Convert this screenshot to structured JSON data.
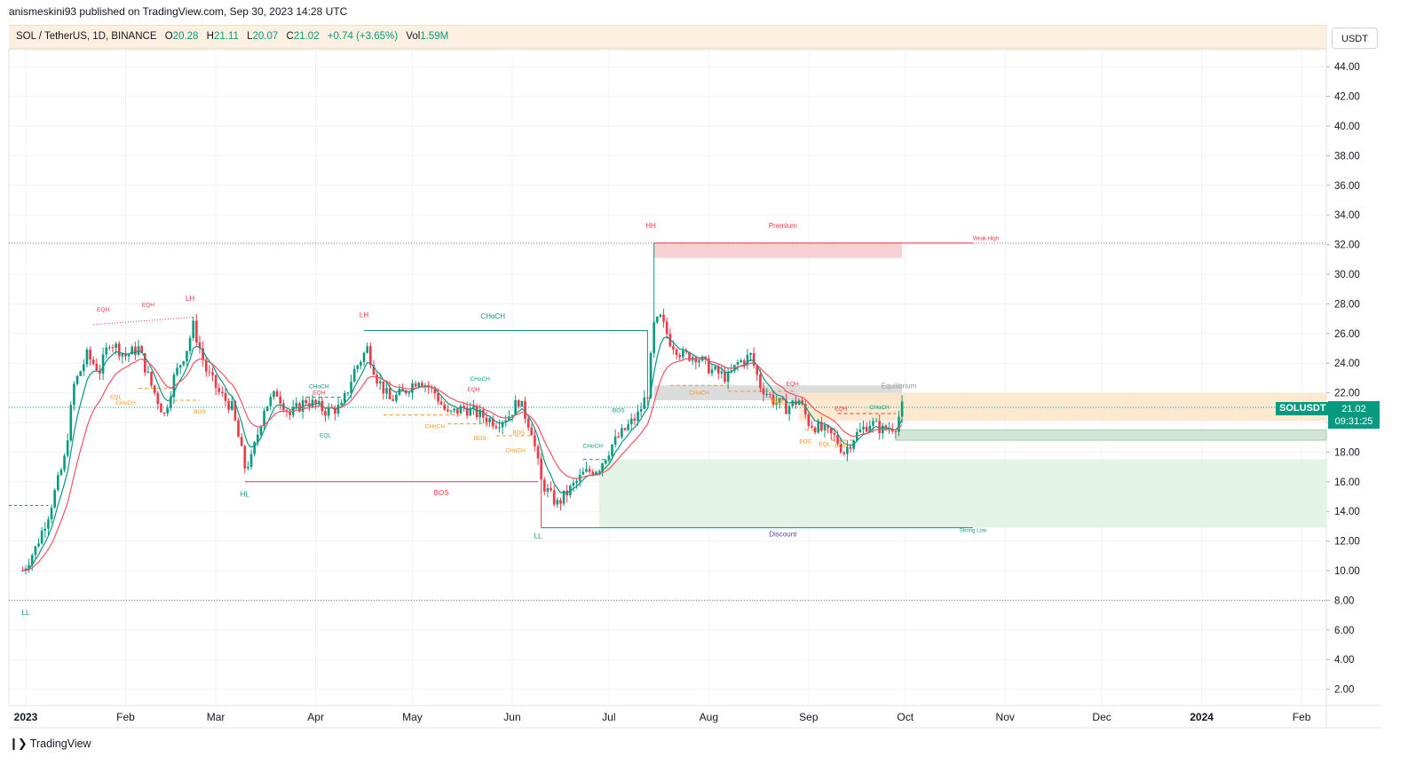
{
  "header": {
    "published": "anismeskini93 published on TradingView.com, Sep 30, 2023 14:28 UTC"
  },
  "legend": {
    "symbol": "SOL / TetherUS, 1D, BINANCE",
    "o_label": "O",
    "o": "20.28",
    "h_label": "H",
    "h": "21.11",
    "l_label": "L",
    "l": "20.07",
    "c_label": "C",
    "c": "21.02",
    "change": "+0.74 (+3.65%)",
    "vol_label": "Vol",
    "vol": "1.59M"
  },
  "currency": "USDT",
  "last_price": {
    "symbol": "SOLUSDT",
    "price": "21.02",
    "countdown": "09:31:25"
  },
  "footer": {
    "brand": "TradingView"
  },
  "colors": {
    "up": "#089981",
    "down": "#f23645",
    "ema_fast": "#089981",
    "ema_slow": "#f7525f",
    "premium_zone": "#f8d1d4",
    "discount_zone": "#e3f3e6",
    "equilibrium_zone": "#dcdcdc",
    "supply_zone": "#fde4c8",
    "purple_zone": "#c9c5d8",
    "bos": "#f7931a",
    "choch_green": "#089981"
  },
  "chart_data": {
    "type": "candlestick",
    "y_axis": {
      "min": 1,
      "max": 45.5,
      "ticks": [
        "44.00",
        "42.00",
        "40.00",
        "38.00",
        "36.00",
        "34.00",
        "32.00",
        "30.00",
        "28.00",
        "26.00",
        "24.00",
        "22.00",
        "20.00",
        "18.00",
        "16.00",
        "14.00",
        "12.00",
        "10.00",
        "8.00",
        "6.00",
        "4.00",
        "2.00"
      ]
    },
    "x_axis": {
      "ticks": [
        {
          "label": "2023",
          "date": "2023-01-01",
          "bold": true
        },
        {
          "label": "Feb",
          "date": "2023-02-01"
        },
        {
          "label": "Mar",
          "date": "2023-03-01"
        },
        {
          "label": "Apr",
          "date": "2023-04-01"
        },
        {
          "label": "May",
          "date": "2023-05-01"
        },
        {
          "label": "Jun",
          "date": "2023-06-01"
        },
        {
          "label": "Jul",
          "date": "2023-07-01"
        },
        {
          "label": "Aug",
          "date": "2023-08-01"
        },
        {
          "label": "Sep",
          "date": "2023-09-01"
        },
        {
          "label": "Oct",
          "date": "2023-10-01"
        },
        {
          "label": "Nov",
          "date": "2023-11-01"
        },
        {
          "label": "Dec",
          "date": "2023-12-01"
        },
        {
          "label": "2024",
          "date": "2024-01-01",
          "bold": true
        },
        {
          "label": "Feb",
          "date": "2024-02-01"
        }
      ]
    },
    "close_path": [
      [
        "2022-12-31",
        10.0
      ],
      [
        "2023-01-04",
        11.5
      ],
      [
        "2023-01-08",
        13.8
      ],
      [
        "2023-01-13",
        17.5
      ],
      [
        "2023-01-16",
        22.5
      ],
      [
        "2023-01-20",
        24.5
      ],
      [
        "2023-01-24",
        23.5
      ],
      [
        "2023-01-27",
        25.5
      ],
      [
        "2023-02-01",
        24.5
      ],
      [
        "2023-02-05",
        25.0
      ],
      [
        "2023-02-09",
        22.5
      ],
      [
        "2023-02-13",
        20.5
      ],
      [
        "2023-02-16",
        23.0
      ],
      [
        "2023-02-20",
        25.0
      ],
      [
        "2023-02-22",
        26.5
      ],
      [
        "2023-02-26",
        23.5
      ],
      [
        "2023-03-02",
        22.0
      ],
      [
        "2023-03-06",
        21.0
      ],
      [
        "2023-03-10",
        17.0
      ],
      [
        "2023-03-12",
        17.5
      ],
      [
        "2023-03-16",
        21.0
      ],
      [
        "2023-03-20",
        22.0
      ],
      [
        "2023-03-24",
        20.5
      ],
      [
        "2023-03-29",
        21.5
      ],
      [
        "2023-04-04",
        20.8
      ],
      [
        "2023-04-09",
        21.0
      ],
      [
        "2023-04-13",
        23.5
      ],
      [
        "2023-04-17",
        25.0
      ],
      [
        "2023-04-20",
        23.0
      ],
      [
        "2023-04-24",
        21.5
      ],
      [
        "2023-04-28",
        22.0
      ],
      [
        "2023-05-03",
        23.0
      ],
      [
        "2023-05-08",
        22.0
      ],
      [
        "2023-05-12",
        20.5
      ],
      [
        "2023-05-17",
        21.0
      ],
      [
        "2023-05-22",
        20.5
      ],
      [
        "2023-05-27",
        20.0
      ],
      [
        "2023-05-31",
        20.5
      ],
      [
        "2023-06-03",
        21.5
      ],
      [
        "2023-06-07",
        19.5
      ],
      [
        "2023-06-10",
        16.0
      ],
      [
        "2023-06-13",
        15.0
      ],
      [
        "2023-06-15",
        14.5
      ],
      [
        "2023-06-19",
        15.5
      ],
      [
        "2023-06-23",
        16.5
      ],
      [
        "2023-06-28",
        17.0
      ],
      [
        "2023-07-02",
        18.5
      ],
      [
        "2023-07-06",
        19.5
      ],
      [
        "2023-07-10",
        20.5
      ],
      [
        "2023-07-13",
        22.0
      ],
      [
        "2023-07-15",
        26.5
      ],
      [
        "2023-07-17",
        27.0
      ],
      [
        "2023-07-20",
        25.5
      ],
      [
        "2023-07-24",
        24.5
      ],
      [
        "2023-07-28",
        24.5
      ],
      [
        "2023-08-02",
        23.5
      ],
      [
        "2023-08-07",
        23.0
      ],
      [
        "2023-08-10",
        24.0
      ],
      [
        "2023-08-14",
        24.5
      ],
      [
        "2023-08-17",
        22.5
      ],
      [
        "2023-08-21",
        21.5
      ],
      [
        "2023-08-25",
        21.0
      ],
      [
        "2023-08-29",
        21.5
      ],
      [
        "2023-09-01",
        20.0
      ],
      [
        "2023-09-05",
        19.5
      ],
      [
        "2023-09-09",
        19.0
      ],
      [
        "2023-09-12",
        18.0
      ],
      [
        "2023-09-15",
        19.0
      ],
      [
        "2023-09-20",
        20.0
      ],
      [
        "2023-09-24",
        19.5
      ],
      [
        "2023-09-28",
        19.8
      ],
      [
        "2023-09-30",
        21.02
      ]
    ],
    "smc_levels": [
      {
        "label": "Weak High",
        "value": 32.1
      },
      {
        "label": "Strong Low",
        "value": 12.9
      },
      {
        "label": "",
        "value": 8.0
      }
    ],
    "zones": [
      {
        "label": "Premium",
        "from": 31.1,
        "to": 32.1
      },
      {
        "label": "Equilibrium",
        "from": 21.5,
        "to": 22.5
      },
      {
        "label": "Discount",
        "from": 12.9,
        "to": 13.8
      }
    ],
    "annotations": [
      "LL",
      "EQH",
      "EQH",
      "LH",
      "EQL",
      "CHoCH",
      "BOS",
      "HL",
      "LH",
      "CHoCH",
      "EQH",
      "EQL",
      "CHoCH",
      "EQH",
      "CHoCH",
      "BOS",
      "CHoCH",
      "BOS",
      "CHoCH",
      "BOS",
      "LL",
      "CHoCH",
      "BOS",
      "HH",
      "Premium",
      "Weak High",
      "Equilibrium",
      "CHoCH",
      "BOS",
      "EQH",
      "BOS",
      "BOS",
      "EQH",
      "EQL",
      "BOS",
      "CHoCH",
      "Discount",
      "Strong Low",
      "HL",
      "BOS",
      "LL"
    ]
  }
}
